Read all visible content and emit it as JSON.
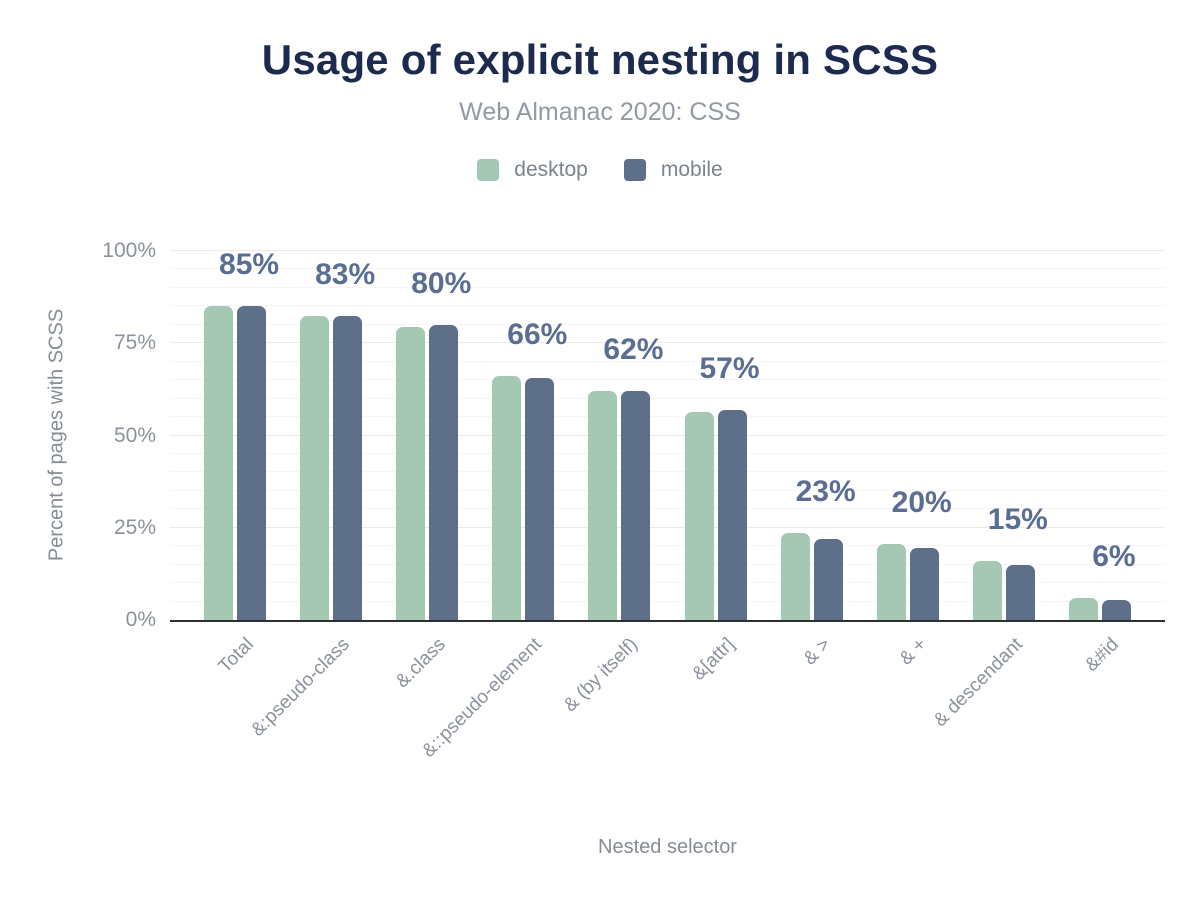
{
  "title": "Usage of explicit nesting in SCSS",
  "subtitle": "Web Almanac 2020: CSS",
  "legend": {
    "items": [
      {
        "label": "desktop",
        "color": "#a5c8b5"
      },
      {
        "label": "mobile",
        "color": "#5d6f89"
      }
    ]
  },
  "colors": {
    "title": "#1b2a4e",
    "subtitle": "#939aa3",
    "axis_text": "#8b929c",
    "value_label": "#5a6d92",
    "desktop": "#a5c8b5",
    "mobile": "#5d6f89",
    "baseline": "#2f2f2f"
  },
  "chart_data": {
    "type": "bar",
    "title": "Usage of explicit nesting in SCSS",
    "subtitle": "Web Almanac 2020: CSS",
    "xlabel": "Nested selector",
    "ylabel": "Percent of pages with SCSS",
    "ylim": [
      0,
      100
    ],
    "yticks": [
      {
        "value": 0,
        "label": "0%"
      },
      {
        "value": 25,
        "label": "25%"
      },
      {
        "value": 50,
        "label": "50%"
      },
      {
        "value": 75,
        "label": "75%"
      },
      {
        "value": 100,
        "label": "100%"
      }
    ],
    "grid": {
      "orientation": "horizontal",
      "minor_step": 5,
      "major_step": 25
    },
    "legend_position": "top",
    "categories": [
      "Total",
      "&:pseudo-class",
      "&.class",
      "&::pseudo-element",
      "& (by itself)",
      "&[attr]",
      "& >",
      "& +",
      "& descendant",
      "&#id"
    ],
    "series": [
      {
        "name": "desktop",
        "color": "#a5c8b5",
        "values": [
          85,
          82.5,
          79.5,
          66,
          62,
          56.5,
          23.5,
          20.5,
          16,
          6
        ]
      },
      {
        "name": "mobile",
        "color": "#5d6f89",
        "values": [
          85,
          82.5,
          80,
          65.5,
          62,
          57,
          22,
          19.5,
          15,
          5.5
        ]
      }
    ],
    "data_labels": [
      "85%",
      "83%",
      "80%",
      "66%",
      "62%",
      "57%",
      "23%",
      "20%",
      "15%",
      "6%"
    ]
  }
}
